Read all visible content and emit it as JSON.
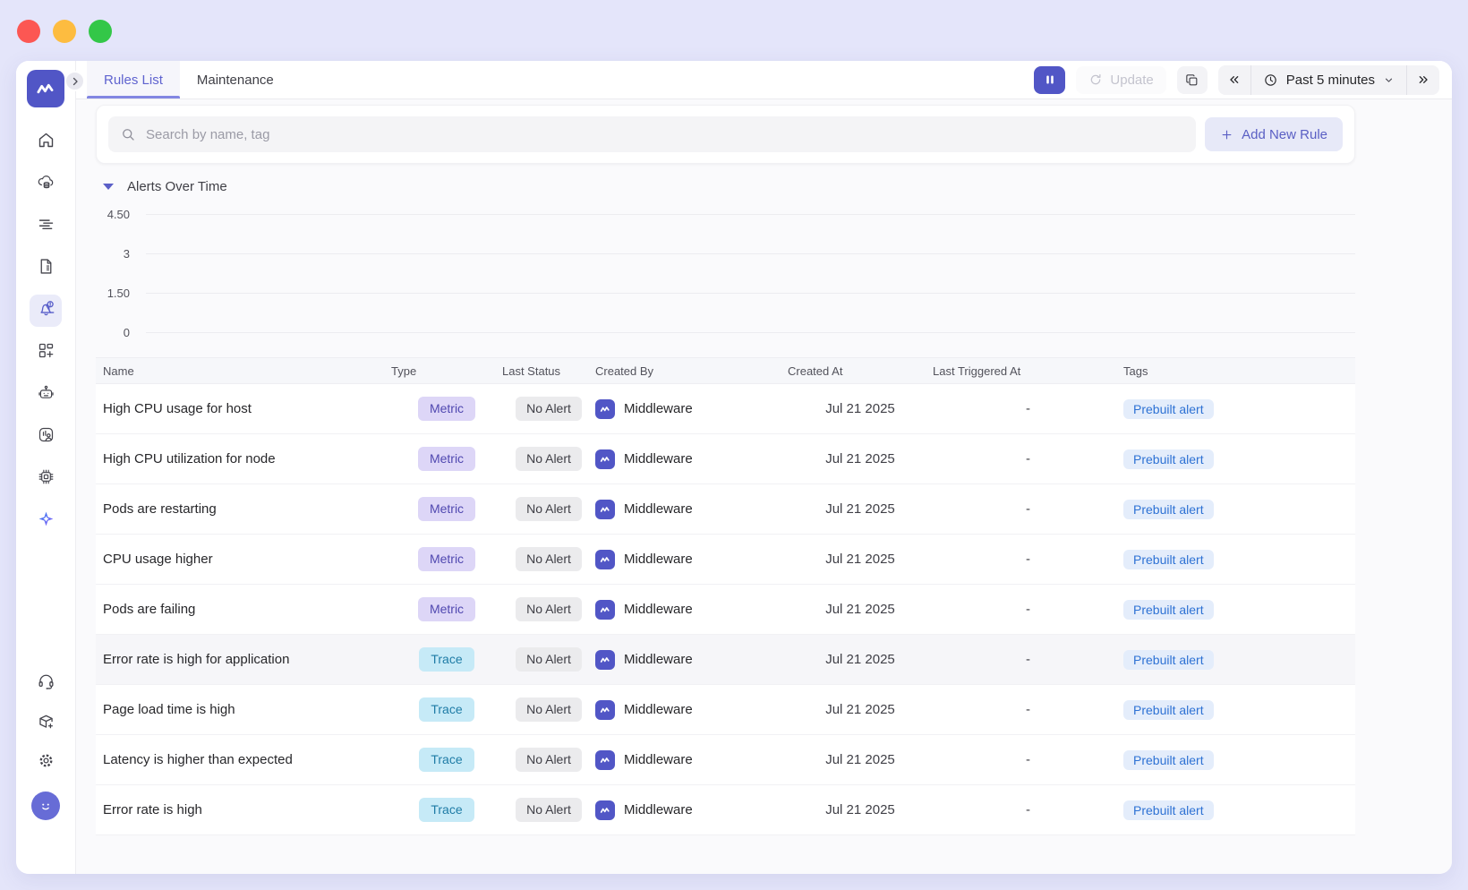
{
  "window_controls": {
    "buttons": [
      "close",
      "minimize",
      "maximize"
    ]
  },
  "header": {
    "tabs": [
      {
        "label": "Rules List",
        "active": true
      },
      {
        "label": "Maintenance",
        "active": false
      }
    ],
    "update_label": "Update",
    "time_range": {
      "label": "Past 5 minutes"
    }
  },
  "toolbar": {
    "search_placeholder": "Search by name, tag",
    "add_rule_label": "Add New Rule"
  },
  "alerts_section": {
    "title": "Alerts Over Time",
    "collapsed": false
  },
  "chart_data": {
    "type": "line",
    "title": "Alerts Over Time",
    "y_ticks": [
      "4.50",
      "3",
      "1.50",
      "0"
    ],
    "ylim": [
      0,
      4.5
    ],
    "x": [],
    "series": [],
    "grid": true,
    "legend": false
  },
  "table": {
    "columns": [
      "Name",
      "Type",
      "Last Status",
      "Created By",
      "Created At",
      "Last Triggered At",
      "Tags"
    ],
    "rows": [
      {
        "name": "High CPU usage for host",
        "type": "Metric",
        "last_status": "No Alert",
        "created_by": "Middleware",
        "created_at": "Jul 21 2025",
        "last_triggered_at": "-",
        "tags": [
          "Prebuilt alert"
        ],
        "highlighted": false
      },
      {
        "name": "High CPU utilization for node",
        "type": "Metric",
        "last_status": "No Alert",
        "created_by": "Middleware",
        "created_at": "Jul 21 2025",
        "last_triggered_at": "-",
        "tags": [
          "Prebuilt alert"
        ],
        "highlighted": false
      },
      {
        "name": "Pods are restarting",
        "type": "Metric",
        "last_status": "No Alert",
        "created_by": "Middleware",
        "created_at": "Jul 21 2025",
        "last_triggered_at": "-",
        "tags": [
          "Prebuilt alert"
        ],
        "highlighted": false
      },
      {
        "name": "CPU usage higher",
        "type": "Metric",
        "last_status": "No Alert",
        "created_by": "Middleware",
        "created_at": "Jul 21 2025",
        "last_triggered_at": "-",
        "tags": [
          "Prebuilt alert"
        ],
        "highlighted": false
      },
      {
        "name": "Pods are failing",
        "type": "Metric",
        "last_status": "No Alert",
        "created_by": "Middleware",
        "created_at": "Jul 21 2025",
        "last_triggered_at": "-",
        "tags": [
          "Prebuilt alert"
        ],
        "highlighted": false
      },
      {
        "name": "Error rate is high for application",
        "type": "Trace",
        "last_status": "No Alert",
        "created_by": "Middleware",
        "created_at": "Jul 21 2025",
        "last_triggered_at": "-",
        "tags": [
          "Prebuilt alert"
        ],
        "highlighted": true
      },
      {
        "name": "Page load time is high",
        "type": "Trace",
        "last_status": "No Alert",
        "created_by": "Middleware",
        "created_at": "Jul 21 2025",
        "last_triggered_at": "-",
        "tags": [
          "Prebuilt alert"
        ],
        "highlighted": false
      },
      {
        "name": "Latency is higher than expected",
        "type": "Trace",
        "last_status": "No Alert",
        "created_by": "Middleware",
        "created_at": "Jul 21 2025",
        "last_triggered_at": "-",
        "tags": [
          "Prebuilt alert"
        ],
        "highlighted": false
      },
      {
        "name": "Error rate is high",
        "type": "Trace",
        "last_status": "No Alert",
        "created_by": "Middleware",
        "created_at": "Jul 21 2025",
        "last_triggered_at": "-",
        "tags": [
          "Prebuilt alert"
        ],
        "highlighted": false
      }
    ]
  },
  "sidebar": {
    "top_items": [
      {
        "id": "home",
        "icon": "home-icon",
        "active": false
      },
      {
        "id": "infrastructure",
        "icon": "infrastructure-icon",
        "active": false
      },
      {
        "id": "logs",
        "icon": "logs-icon",
        "active": false
      },
      {
        "id": "reports",
        "icon": "document-icon",
        "active": false
      },
      {
        "id": "alerts",
        "icon": "alert-bell-icon",
        "active": true
      },
      {
        "id": "dashboards",
        "icon": "dashboard-add-icon",
        "active": false
      },
      {
        "id": "synthetics",
        "icon": "bot-icon",
        "active": false
      },
      {
        "id": "rum",
        "icon": "real-user-monitoring-icon",
        "active": false
      },
      {
        "id": "agents",
        "icon": "chip-icon",
        "active": false
      },
      {
        "id": "ai-assistant",
        "icon": "ai-sparkle-icon",
        "active": false
      }
    ],
    "bottom_items": [
      {
        "id": "support",
        "icon": "headset-icon",
        "active": false
      },
      {
        "id": "integrations",
        "icon": "package-add-icon",
        "active": false
      },
      {
        "id": "settings",
        "icon": "gear-icon",
        "active": false
      }
    ]
  },
  "colors": {
    "accent": "#5156c6",
    "page_background": "#e4e5fa",
    "metric_badge_bg": "#ddd6f7",
    "metric_badge_text": "#5048b0",
    "trace_badge_bg": "#c6eaf7",
    "trace_badge_text": "#1f7ca6",
    "status_badge_bg": "#ebebed",
    "tag_badge_bg": "#e4edfb",
    "tag_badge_text": "#2e72d4"
  }
}
